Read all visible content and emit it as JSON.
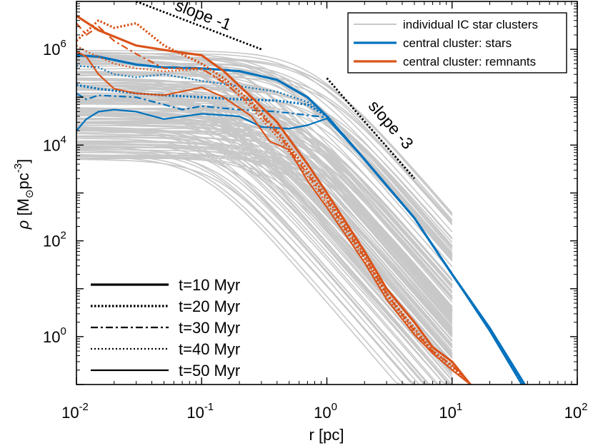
{
  "chart_data": {
    "type": "line",
    "xscale": "log",
    "yscale": "log",
    "xlim": [
      0.01,
      100
    ],
    "ylim": [
      0.1,
      10000000
    ],
    "x_ticks": [
      {
        "base": "10",
        "exp": "-2",
        "value": 0.01
      },
      {
        "base": "10",
        "exp": "-1",
        "value": 0.1
      },
      {
        "base": "10",
        "exp": "0",
        "value": 1
      },
      {
        "base": "10",
        "exp": "1",
        "value": 10
      },
      {
        "base": "10",
        "exp": "2",
        "value": 100
      }
    ],
    "y_ticks": [
      {
        "base": "10",
        "exp": "0",
        "value": 1
      },
      {
        "base": "10",
        "exp": "2",
        "value": 100
      },
      {
        "base": "10",
        "exp": "4",
        "value": 10000
      },
      {
        "base": "10",
        "exp": "6",
        "value": 1000000
      }
    ],
    "xlabel": "r [pc]",
    "ylabel": {
      "sym": "ρ",
      "open": " [M",
      "sub": "⊙",
      "mid": "pc",
      "sup": "-3",
      "close": "]"
    },
    "colors": {
      "ic": "#c8c8c8",
      "stars": "#0072bd",
      "remnants": "#d95319"
    },
    "legend": {
      "placement": "top-right",
      "entries": [
        {
          "label": "individual IC star clusters",
          "color": "#c8c8c8"
        },
        {
          "label": "central cluster: stars",
          "color": "#0072bd"
        },
        {
          "label": "central cluster: remnants",
          "color": "#d95319"
        }
      ]
    },
    "time_legend": {
      "placement": "bottom-left",
      "entries": [
        {
          "label": "t=10 Myr",
          "dash": "solid-thick"
        },
        {
          "label": "t=20 Myr",
          "dash": "dotted-thick"
        },
        {
          "label": "t=30 Myr",
          "dash": "dash-dot"
        },
        {
          "label": "t=40 Myr",
          "dash": "dotted"
        },
        {
          "label": "t=50 Myr",
          "dash": "solid"
        }
      ]
    },
    "annotations": [
      {
        "text": "slope -1",
        "x": [
          0.03,
          0.3
        ],
        "y": [
          10000000,
          1000000
        ]
      },
      {
        "text": "slope -3",
        "x": [
          1,
          5
        ],
        "y": [
          250000,
          2000
        ]
      }
    ],
    "ic_clusters": {
      "count": 150,
      "profile": "core-powerlaw",
      "rho0_range": [
        5000,
        1000000
      ],
      "rc_range": [
        0.1,
        1.0
      ],
      "outer_slope": -3
    },
    "series": [
      {
        "group": "stars",
        "time": "t=10 Myr",
        "x": [
          0.01,
          0.015,
          0.03,
          0.05,
          0.1,
          0.2,
          0.4,
          0.7,
          1,
          2,
          5,
          10,
          20,
          38
        ],
        "y": [
          750000,
          700000,
          480000,
          420000,
          400000,
          350000,
          230000,
          100000,
          40000,
          5000,
          300,
          20,
          1.5,
          0.1
        ]
      },
      {
        "group": "stars",
        "time": "t=20 Myr",
        "x": [
          0.01,
          0.015,
          0.03,
          0.05,
          0.1,
          0.2,
          0.4,
          0.7,
          1,
          2,
          5,
          10,
          20,
          37
        ],
        "y": [
          180000,
          150000,
          120000,
          110000,
          100000,
          90000,
          85000,
          70000,
          40000,
          5000,
          300,
          20,
          1.5,
          0.1
        ]
      },
      {
        "group": "stars",
        "time": "t=30 Myr",
        "x": [
          0.01,
          0.012,
          0.015,
          0.03,
          0.05,
          0.07,
          0.1,
          0.2,
          0.4,
          0.7,
          1,
          2,
          5,
          10,
          20,
          36
        ],
        "y": [
          120000,
          90000,
          110000,
          100000,
          70000,
          55000,
          65000,
          55000,
          50000,
          42000,
          38000,
          5000,
          300,
          20,
          1.4,
          0.1
        ]
      },
      {
        "group": "stars",
        "time": "t=40 Myr",
        "x": [
          0.01,
          0.015,
          0.02,
          0.03,
          0.05,
          0.1,
          0.2,
          0.4,
          0.7,
          1,
          2,
          5,
          10,
          20,
          37
        ],
        "y": [
          450000,
          420000,
          300000,
          260000,
          300000,
          220000,
          170000,
          130000,
          80000,
          42000,
          5000,
          300,
          20,
          1.4,
          0.1
        ]
      },
      {
        "group": "stars",
        "time": "t=50 Myr",
        "x": [
          0.01,
          0.012,
          0.015,
          0.02,
          0.03,
          0.05,
          0.1,
          0.2,
          0.3,
          0.5,
          0.7,
          1,
          2,
          5,
          10,
          20,
          36
        ],
        "y": [
          20000,
          35000,
          50000,
          55000,
          50000,
          35000,
          45000,
          40000,
          24000,
          22000,
          26000,
          36000,
          5000,
          300,
          20,
          1.3,
          0.1
        ]
      },
      {
        "group": "remnants",
        "time": "t=10 Myr",
        "x": [
          0.01,
          0.015,
          0.03,
          0.06,
          0.1,
          0.15,
          0.25,
          0.4,
          0.7,
          1,
          2,
          3,
          5,
          7,
          10,
          14
        ],
        "y": [
          5000000,
          2500000,
          1200000,
          900000,
          750000,
          350000,
          100000,
          30000,
          4000,
          1000,
          60,
          10,
          2,
          0.6,
          0.3,
          0.1
        ]
      },
      {
        "group": "remnants",
        "time": "t=20 Myr",
        "x": [
          0.01,
          0.015,
          0.02,
          0.03,
          0.05,
          0.1,
          0.15,
          0.25,
          0.4,
          0.7,
          1,
          2,
          3,
          5,
          7,
          10,
          14
        ],
        "y": [
          1500000,
          4000000,
          2800000,
          3500000,
          1200000,
          500000,
          250000,
          80000,
          20000,
          3000,
          800,
          50,
          8,
          1.5,
          0.5,
          0.25,
          0.1
        ]
      },
      {
        "group": "remnants",
        "time": "t=30 Myr",
        "x": [
          0.01,
          0.012,
          0.015,
          0.02,
          0.03,
          0.05,
          0.1,
          0.15,
          0.25,
          0.4,
          0.7,
          1,
          2,
          3,
          5,
          7,
          10,
          14
        ],
        "y": [
          3500000,
          2000000,
          3000000,
          1500000,
          800000,
          400000,
          400000,
          200000,
          70000,
          18000,
          2500,
          700,
          45,
          8,
          1.3,
          0.5,
          0.25,
          0.1
        ]
      },
      {
        "group": "remnants",
        "time": "t=40 Myr",
        "x": [
          0.01,
          0.012,
          0.015,
          0.02,
          0.03,
          0.05,
          0.1,
          0.15,
          0.25,
          0.4,
          0.7,
          1,
          2,
          3,
          5,
          7,
          10,
          14
        ],
        "y": [
          1200000,
          900000,
          700000,
          500000,
          400000,
          350000,
          380000,
          220000,
          60000,
          15000,
          2200,
          600,
          40,
          7,
          1.2,
          0.5,
          0.22,
          0.1
        ]
      },
      {
        "group": "remnants",
        "time": "t=50 Myr",
        "x": [
          0.01,
          0.012,
          0.015,
          0.02,
          0.03,
          0.05,
          0.1,
          0.15,
          0.25,
          0.35,
          0.5,
          0.7,
          1,
          2,
          3,
          5,
          7,
          10,
          14
        ],
        "y": [
          900000,
          700000,
          300000,
          150000,
          120000,
          110000,
          160000,
          100000,
          40000,
          12000,
          8000,
          1800,
          500,
          35,
          6,
          1.1,
          0.45,
          0.2,
          0.1
        ]
      }
    ]
  }
}
